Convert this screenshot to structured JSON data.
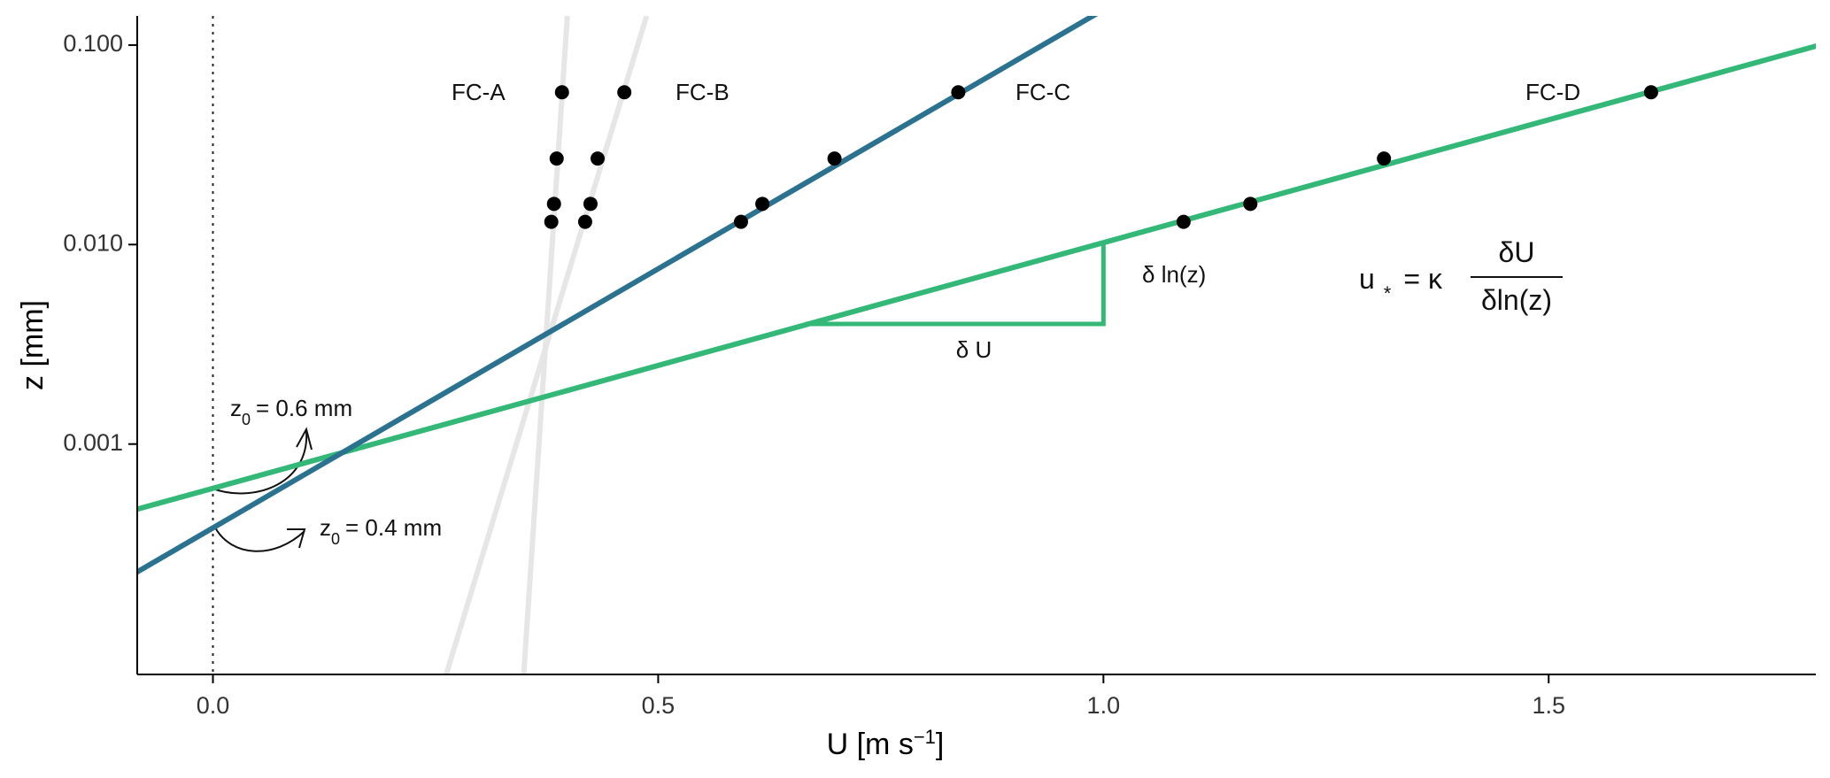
{
  "chart_data": {
    "type": "line",
    "xlabel": "U [m s",
    "xlabel_sup": "−1",
    "xlabel_end": "]",
    "ylabel": "z [mm]",
    "xlim": [
      -0.085,
      1.8
    ],
    "ylim": [
      7e-05,
      0.14
    ],
    "yscale": "log",
    "x_ticks": [
      0.0,
      0.5,
      1.0,
      1.5
    ],
    "x_tick_labels": [
      "0.0",
      "0.5",
      "1.0",
      "1.5"
    ],
    "y_ticks": [
      0.001,
      0.01,
      0.1
    ],
    "y_tick_labels": [
      "0.001",
      "0.010",
      "0.100"
    ],
    "grid": false,
    "series": [
      {
        "name": "FC-A",
        "color": "#e6e6e6",
        "points": [
          [
            0.38,
            0.013
          ],
          [
            0.383,
            0.016
          ],
          [
            0.386,
            0.027
          ],
          [
            0.392,
            0.058
          ]
        ],
        "fit": {
          "x_at_z_min": 0.349,
          "x_at_z_max": 0.398
        }
      },
      {
        "name": "FC-B",
        "color": "#e6e6e6",
        "points": [
          [
            0.418,
            0.013
          ],
          [
            0.424,
            0.016
          ],
          [
            0.432,
            0.027
          ],
          [
            0.462,
            0.058
          ]
        ],
        "fit": {
          "x_at_z_min": 0.262,
          "x_at_z_max": 0.487
        }
      },
      {
        "name": "FC-C",
        "color": "#2a7290",
        "points": [
          [
            0.593,
            0.013
          ],
          [
            0.617,
            0.016
          ],
          [
            0.698,
            0.027
          ],
          [
            0.837,
            0.058
          ]
        ],
        "fit": {
          "z0": 0.00038,
          "slope_per_decade": 0.385
        }
      },
      {
        "name": "FC-D",
        "color": "#33b877",
        "points": [
          [
            1.09,
            0.013
          ],
          [
            1.165,
            0.016
          ],
          [
            1.315,
            0.027
          ],
          [
            1.615,
            0.058
          ]
        ],
        "fit": {
          "z0": 0.0006,
          "slope_per_decade": 0.812
        }
      }
    ],
    "slope_triangle": {
      "x_left": 0.665,
      "x_right": 1.0,
      "z_bottom": 0.004,
      "z_top": 0.0103,
      "color": "#33b877",
      "delta_u_label": "δ U",
      "delta_lnz_label": "δ ln(z)"
    },
    "annotations": {
      "z0_upper": {
        "label": "= 0.6 mm",
        "sym": "z",
        "sub": "0"
      },
      "z0_lower": {
        "label": "= 0.4 mm",
        "sym": "z",
        "sub": "0"
      }
    },
    "formula": {
      "lhs": "u",
      "lhs_sub": "*",
      "mid": "= κ",
      "numerator": "δU",
      "denominator": "δln(z)"
    }
  }
}
